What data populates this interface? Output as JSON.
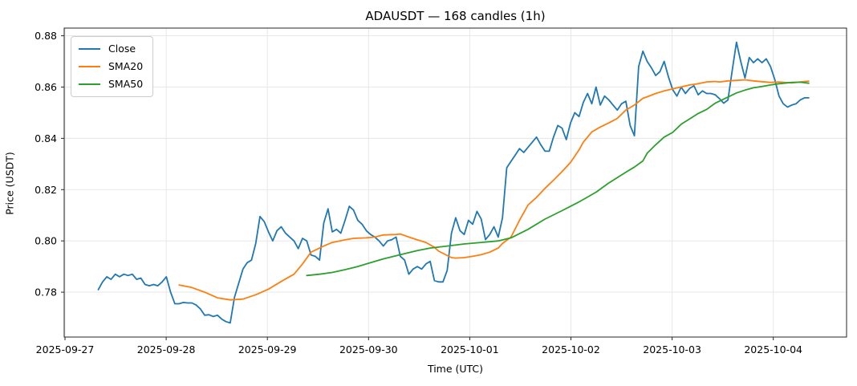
{
  "title": "ADAUSDT — 168 candles (1h)",
  "axes": {
    "xlabel": "Time (UTC)",
    "ylabel": "Price (USDT)"
  },
  "legend": [
    {
      "label": "Close",
      "color": "#1f77b4"
    },
    {
      "label": "SMA20",
      "color": "#ff7f0e"
    },
    {
      "label": "SMA50",
      "color": "#2ca02c"
    }
  ],
  "chart_data": {
    "type": "line",
    "title": "ADAUSDT — 168 candles (1h)",
    "xlabel": "Time (UTC)",
    "ylabel": "Price (USDT)",
    "x_unit": "hourly candle index, candle 0 ≈ 2025-09-27 08:00 UTC, 168 candles",
    "ylim": [
      0.7625,
      0.883
    ],
    "y_tick_values": [
      0.78,
      0.8,
      0.82,
      0.84,
      0.86,
      0.88
    ],
    "x_tick_labels": [
      "2025-09-27",
      "2025-09-28",
      "2025-09-29",
      "2025-09-30",
      "2025-10-01",
      "2025-10-02",
      "2025-10-03",
      "2025-10-04"
    ],
    "grid": true,
    "legend_position": "upper left",
    "series": [
      {
        "name": "Close",
        "color": "#1f77b4",
        "start_index": 0,
        "values": [
          0.781,
          0.784,
          0.786,
          0.785,
          0.787,
          0.786,
          0.787,
          0.7865,
          0.787,
          0.785,
          0.7855,
          0.783,
          0.7825,
          0.783,
          0.7825,
          0.784,
          0.786,
          0.78,
          0.7755,
          0.7755,
          0.776,
          0.7758,
          0.7758,
          0.775,
          0.7735,
          0.771,
          0.7712,
          0.7705,
          0.771,
          0.7695,
          0.7685,
          0.768,
          0.778,
          0.7835,
          0.789,
          0.7915,
          0.7925,
          0.799,
          0.8095,
          0.8075,
          0.8035,
          0.8,
          0.804,
          0.8055,
          0.803,
          0.8015,
          0.8,
          0.797,
          0.801,
          0.8,
          0.7945,
          0.794,
          0.7925,
          0.807,
          0.8125,
          0.8035,
          0.8045,
          0.803,
          0.808,
          0.8135,
          0.812,
          0.808,
          0.8065,
          0.804,
          0.8025,
          0.8015,
          0.8,
          0.798,
          0.8,
          0.8005,
          0.8015,
          0.794,
          0.7925,
          0.787,
          0.789,
          0.79,
          0.789,
          0.791,
          0.792,
          0.7845,
          0.784,
          0.784,
          0.7885,
          0.803,
          0.809,
          0.804,
          0.8025,
          0.808,
          0.8065,
          0.8115,
          0.8085,
          0.8005,
          0.8025,
          0.8055,
          0.8015,
          0.809,
          0.8285,
          0.831,
          0.8335,
          0.836,
          0.8345,
          0.8365,
          0.8385,
          0.8405,
          0.8375,
          0.835,
          0.835,
          0.8405,
          0.845,
          0.844,
          0.8395,
          0.846,
          0.85,
          0.8485,
          0.854,
          0.8575,
          0.8535,
          0.86,
          0.853,
          0.8565,
          0.855,
          0.853,
          0.851,
          0.8535,
          0.8545,
          0.845,
          0.841,
          0.868,
          0.874,
          0.87,
          0.8675,
          0.8645,
          0.866,
          0.87,
          0.864,
          0.859,
          0.8565,
          0.86,
          0.8575,
          0.8595,
          0.8605,
          0.857,
          0.8585,
          0.8575,
          0.8575,
          0.857,
          0.8555,
          0.8537,
          0.855,
          0.8665,
          0.8775,
          0.87,
          0.8635,
          0.8715,
          0.8695,
          0.871,
          0.8695,
          0.871,
          0.868,
          0.863,
          0.8565,
          0.8535,
          0.8522,
          0.853,
          0.8535,
          0.855,
          0.8558,
          0.8558
        ]
      },
      {
        "name": "SMA20",
        "color": "#ff7f0e",
        "points": [
          [
            19,
            0.7828
          ],
          [
            22,
            0.7818
          ],
          [
            25,
            0.78
          ],
          [
            28,
            0.7778
          ],
          [
            31,
            0.777
          ],
          [
            34,
            0.7773
          ],
          [
            37,
            0.779
          ],
          [
            40,
            0.7812
          ],
          [
            43,
            0.7842
          ],
          [
            46,
            0.787
          ],
          [
            48,
            0.791
          ],
          [
            50,
            0.7956
          ],
          [
            53,
            0.798
          ],
          [
            55,
            0.7994
          ],
          [
            58,
            0.8004
          ],
          [
            60,
            0.801
          ],
          [
            63,
            0.8012
          ],
          [
            65,
            0.8015
          ],
          [
            67,
            0.8023
          ],
          [
            70,
            0.8025
          ],
          [
            71,
            0.8027
          ],
          [
            73,
            0.8015
          ],
          [
            75,
            0.8004
          ],
          [
            77,
            0.7994
          ],
          [
            79,
            0.7975
          ],
          [
            80,
            0.796
          ],
          [
            83,
            0.7935
          ],
          [
            84,
            0.7933
          ],
          [
            86,
            0.7935
          ],
          [
            88,
            0.794
          ],
          [
            90,
            0.7946
          ],
          [
            92,
            0.7956
          ],
          [
            94,
            0.7972
          ],
          [
            95,
            0.799
          ],
          [
            97,
            0.8015
          ],
          [
            99,
            0.808
          ],
          [
            101,
            0.814
          ],
          [
            103,
            0.817
          ],
          [
            105,
            0.8205
          ],
          [
            107,
            0.8237
          ],
          [
            109,
            0.827
          ],
          [
            111,
            0.8306
          ],
          [
            113,
            0.8355
          ],
          [
            114,
            0.8385
          ],
          [
            116,
            0.8425
          ],
          [
            118,
            0.8444
          ],
          [
            120,
            0.846
          ],
          [
            122,
            0.8478
          ],
          [
            124,
            0.851
          ],
          [
            126,
            0.853
          ],
          [
            128,
            0.8556
          ],
          [
            129,
            0.8562
          ],
          [
            131,
            0.8575
          ],
          [
            133,
            0.8585
          ],
          [
            135,
            0.8593
          ],
          [
            137,
            0.8601
          ],
          [
            139,
            0.8608
          ],
          [
            141,
            0.8613
          ],
          [
            143,
            0.862
          ],
          [
            145,
            0.8622
          ],
          [
            146,
            0.862
          ],
          [
            148,
            0.8624
          ],
          [
            150,
            0.8626
          ],
          [
            152,
            0.8628
          ],
          [
            154,
            0.8624
          ],
          [
            156,
            0.8621
          ],
          [
            158,
            0.8618
          ],
          [
            160,
            0.862
          ],
          [
            163,
            0.8616
          ],
          [
            165,
            0.862
          ],
          [
            167,
            0.8623
          ]
        ]
      },
      {
        "name": "SMA50",
        "color": "#2ca02c",
        "points": [
          [
            49,
            0.7865
          ],
          [
            52,
            0.787
          ],
          [
            55,
            0.7877
          ],
          [
            58,
            0.7888
          ],
          [
            61,
            0.79
          ],
          [
            63,
            0.791
          ],
          [
            67,
            0.793
          ],
          [
            71,
            0.7946
          ],
          [
            75,
            0.7962
          ],
          [
            78,
            0.7972
          ],
          [
            82,
            0.798
          ],
          [
            86,
            0.7988
          ],
          [
            90,
            0.7994
          ],
          [
            94,
            0.8
          ],
          [
            97,
            0.8012
          ],
          [
            101,
            0.8045
          ],
          [
            105,
            0.8085
          ],
          [
            109,
            0.8118
          ],
          [
            111,
            0.8135
          ],
          [
            113,
            0.8152
          ],
          [
            117,
            0.819
          ],
          [
            120,
            0.8226
          ],
          [
            124,
            0.8268
          ],
          [
            126,
            0.8288
          ],
          [
            128,
            0.8312
          ],
          [
            129,
            0.8342
          ],
          [
            131,
            0.8375
          ],
          [
            133,
            0.8405
          ],
          [
            135,
            0.8423
          ],
          [
            137,
            0.8455
          ],
          [
            139,
            0.8476
          ],
          [
            141,
            0.8497
          ],
          [
            143,
            0.8513
          ],
          [
            145,
            0.8537
          ],
          [
            148,
            0.8561
          ],
          [
            150,
            0.8577
          ],
          [
            152,
            0.8588
          ],
          [
            154,
            0.8597
          ],
          [
            156,
            0.8602
          ],
          [
            158,
            0.8608
          ],
          [
            160,
            0.8613
          ],
          [
            163,
            0.8618
          ],
          [
            165,
            0.8619
          ],
          [
            167,
            0.8615
          ]
        ]
      }
    ]
  }
}
